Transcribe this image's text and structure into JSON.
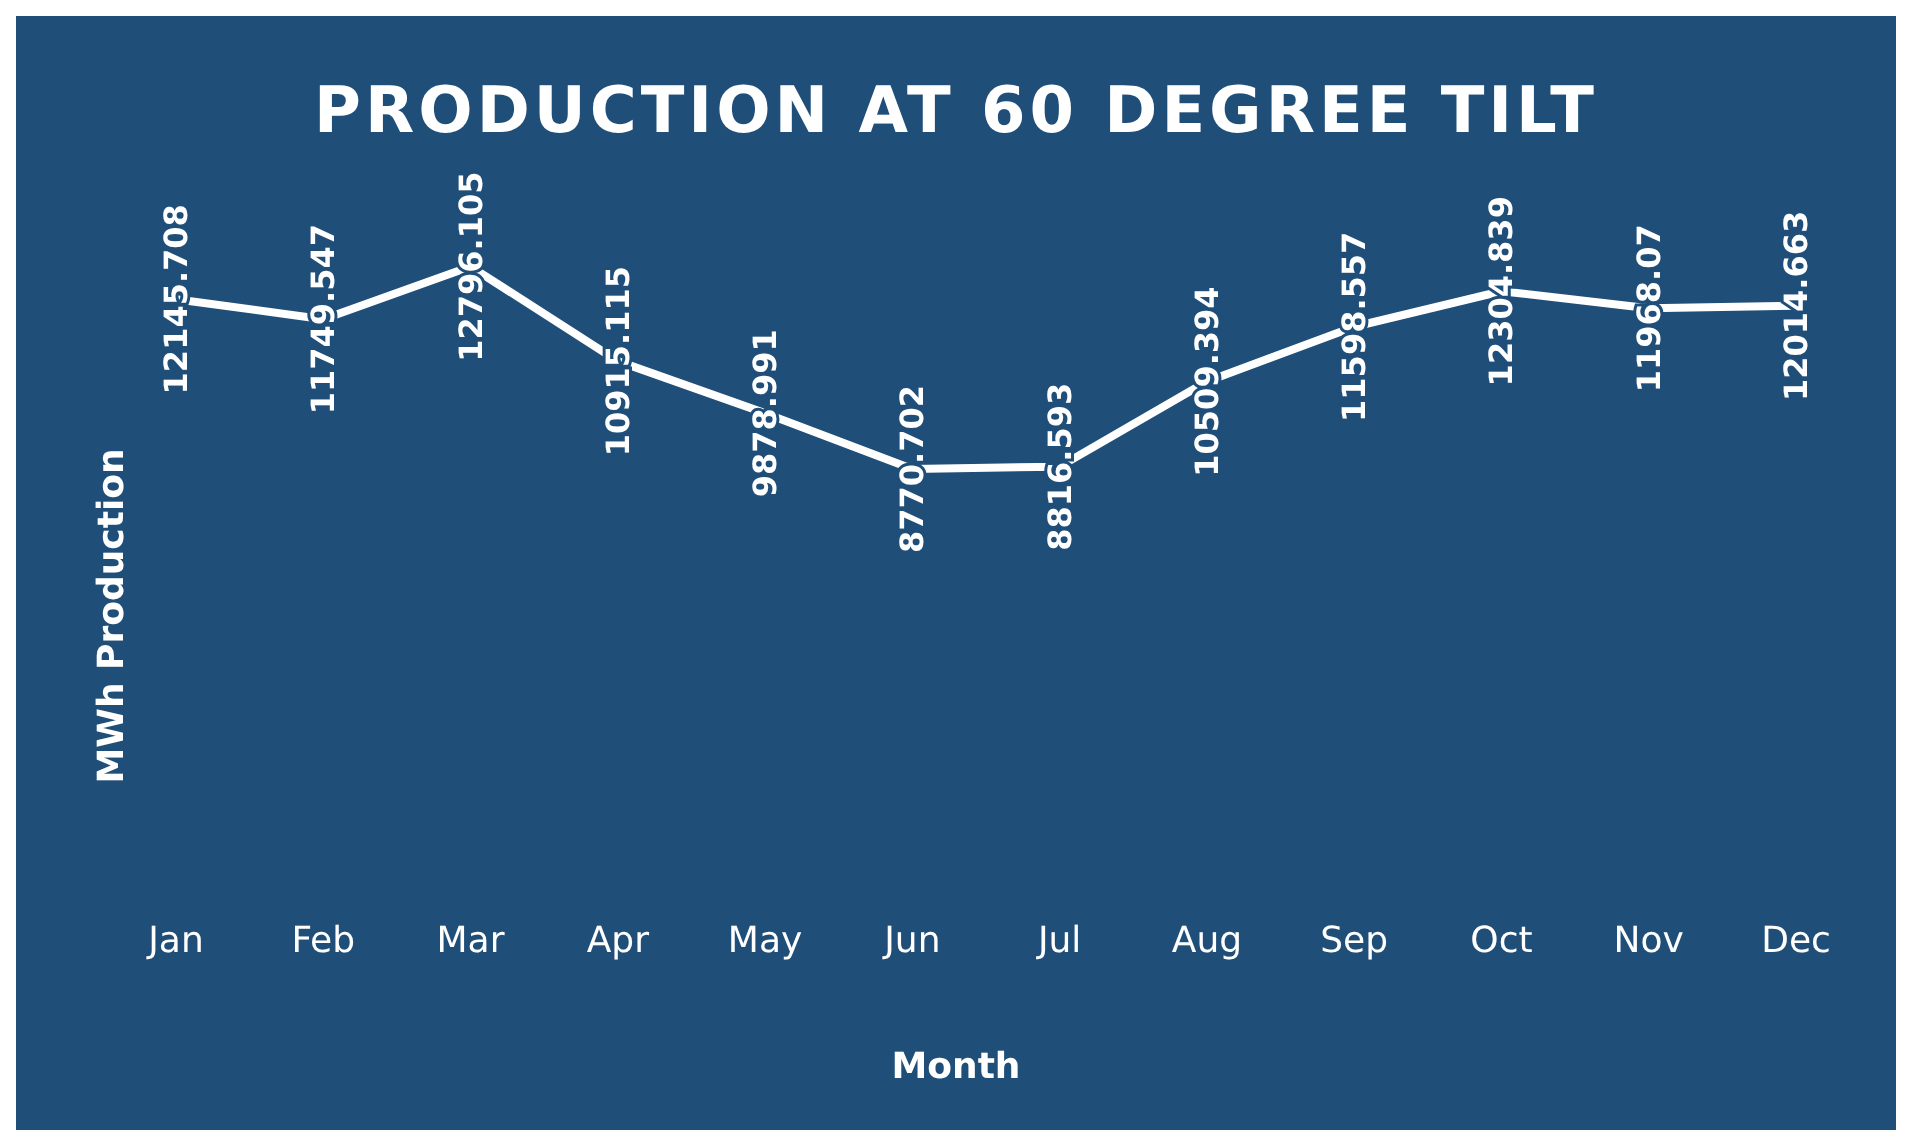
{
  "chart_data": {
    "type": "line",
    "title": "PRODUCTION AT 60 DEGREE TILT",
    "xlabel": "Month",
    "ylabel": "MWh Production",
    "categories": [
      "Jan",
      "Feb",
      "Mar",
      "Apr",
      "May",
      "Jun",
      "Jul",
      "Aug",
      "Sep",
      "Oct",
      "Nov",
      "Dec"
    ],
    "series": [
      {
        "color": "#ffffff",
        "values": [
          12145.708,
          11749.547,
          12796.105,
          10915.115,
          9878.991,
          8770.702,
          8816.593,
          10509.394,
          11598.557,
          12304.839,
          11968.07,
          12014.663
        ]
      }
    ],
    "tick_labels": "x",
    "data_labels": true,
    "grid": false,
    "legend": false,
    "marker": "none",
    "line_style": "solid"
  }
}
